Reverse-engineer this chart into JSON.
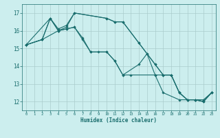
{
  "xlabel": "Humidex (Indice chaleur)",
  "ylabel": "",
  "bg_color": "#cceeee",
  "grid_color": "#aacccc",
  "line_color": "#1a6e6e",
  "xlim": [
    -0.5,
    23.5
  ],
  "ylim": [
    11.5,
    17.5
  ],
  "xticks": [
    0,
    1,
    2,
    3,
    4,
    5,
    6,
    7,
    8,
    9,
    10,
    11,
    12,
    13,
    14,
    15,
    16,
    17,
    18,
    19,
    20,
    21,
    22,
    23
  ],
  "yticks": [
    12,
    13,
    14,
    15,
    16,
    17
  ],
  "series": [
    {
      "x": [
        0,
        2,
        4,
        5,
        6,
        10,
        11,
        12,
        14,
        15,
        16,
        17,
        18,
        19,
        20,
        21,
        22,
        23
      ],
      "y": [
        15.2,
        15.5,
        16.0,
        16.2,
        17.0,
        16.7,
        16.5,
        16.5,
        15.3,
        14.7,
        14.1,
        13.5,
        13.5,
        12.5,
        12.1,
        12.1,
        12.1,
        12.5
      ]
    },
    {
      "x": [
        0,
        3,
        4,
        5,
        6,
        7,
        8,
        10,
        11,
        12,
        13,
        16,
        17,
        19,
        20,
        21,
        22,
        23
      ],
      "y": [
        15.2,
        16.7,
        16.0,
        16.1,
        16.2,
        15.6,
        14.8,
        14.8,
        14.3,
        13.5,
        13.5,
        13.5,
        12.5,
        12.1,
        12.1,
        12.1,
        12.0,
        12.5
      ]
    },
    {
      "x": [
        0,
        2,
        3,
        4,
        5,
        6,
        7,
        8,
        9,
        10,
        11,
        12,
        14,
        15,
        16,
        17,
        18,
        19,
        20,
        21,
        22,
        23
      ],
      "y": [
        15.2,
        15.5,
        16.7,
        16.0,
        16.1,
        16.2,
        15.5,
        14.8,
        14.8,
        14.8,
        14.3,
        13.5,
        14.1,
        14.7,
        13.5,
        13.5,
        13.5,
        12.5,
        12.1,
        12.1,
        12.0,
        12.5
      ]
    },
    {
      "x": [
        0,
        2,
        3,
        4,
        5,
        6,
        10,
        11,
        12,
        14,
        16,
        17,
        18,
        19,
        20,
        21,
        22,
        23
      ],
      "y": [
        15.2,
        15.5,
        16.7,
        16.1,
        16.3,
        17.0,
        16.7,
        16.5,
        16.5,
        15.3,
        14.1,
        13.5,
        13.5,
        12.5,
        12.1,
        12.1,
        12.0,
        12.5
      ]
    }
  ]
}
